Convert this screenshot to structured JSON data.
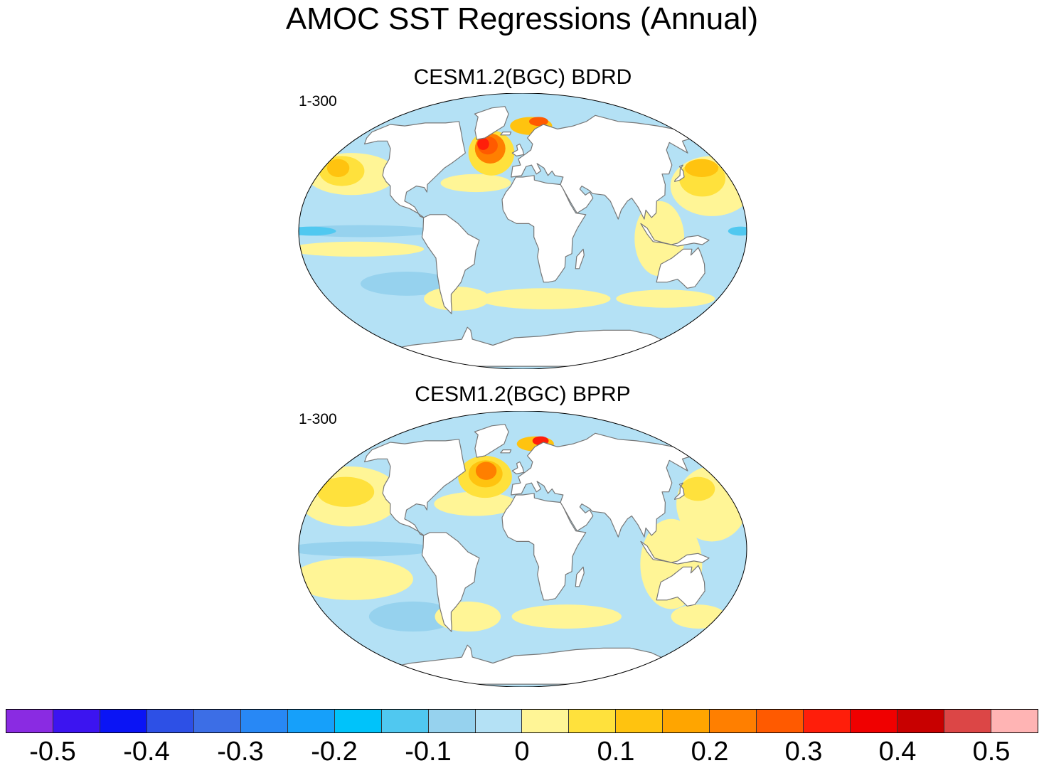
{
  "title": "AMOC SST Regressions (Annual)",
  "panels": [
    {
      "title": "CESM1.2(BGC) BDRD",
      "label": "1-300"
    },
    {
      "title": "CESM1.2(BGC) BPRP",
      "label": "1-300"
    }
  ],
  "colorbar": {
    "colors": [
      "#8a2be2",
      "#3c14f0",
      "#0a14f5",
      "#2d50e6",
      "#3c6ee6",
      "#2888f5",
      "#16a0fa",
      "#00c3fa",
      "#50c8f0",
      "#96d2ee",
      "#b4e1f5",
      "#fff596",
      "#ffe13c",
      "#ffc30f",
      "#ffa500",
      "#ff7f00",
      "#ff5a00",
      "#ff1e0a",
      "#f00000",
      "#c80000",
      "#dc4646",
      "#ffb4b4"
    ],
    "labels": [
      "-0.5",
      "-0.4",
      "-0.3",
      "-0.2",
      "-0.1",
      "0",
      "0.1",
      "0.2",
      "0.3",
      "0.4",
      "0.5"
    ]
  },
  "map_colors": {
    "ocean_neg": "#b4e1f5",
    "ocean_neg2": "#96d2ee",
    "ocean_pos": "#fff596",
    "pos2": "#ffe13c",
    "pos3": "#ffc30f",
    "pos4": "#ffa500",
    "pos5": "#ff7f00",
    "pos6": "#ff5a00",
    "pos7": "#ff1e0a",
    "neg3": "#50c8f0",
    "land": "#ffffff",
    "coast": "#777777"
  }
}
